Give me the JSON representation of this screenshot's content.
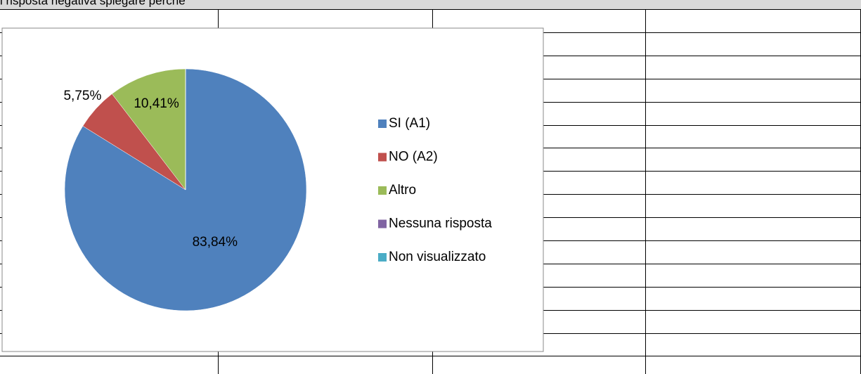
{
  "header_text": "i risposta negativa spiegare perché",
  "chart_data": {
    "type": "pie",
    "categories": [
      "SI (A1)",
      "NO (A2)",
      "Altro",
      "Nessuna risposta",
      "Non visualizzato"
    ],
    "values": [
      83.84,
      5.75,
      10.41,
      0,
      0
    ],
    "value_labels": [
      "83,84%",
      "5,75%",
      "10,41%",
      null,
      null
    ],
    "colors": [
      "#4f81bd",
      "#c0504d",
      "#9bbb59",
      "#8064a2",
      "#4bacc6"
    ],
    "legend": "right"
  }
}
